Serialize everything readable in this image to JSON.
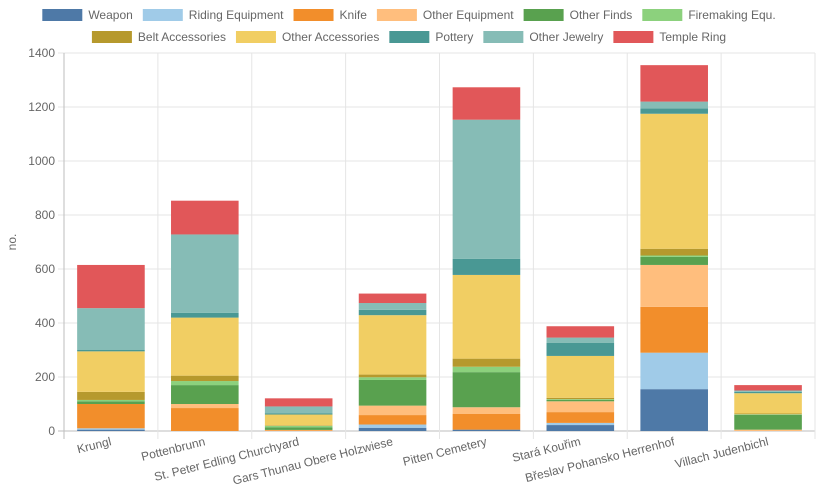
{
  "chart_data": {
    "type": "bar",
    "stacked": true,
    "ylabel": "no.",
    "ylim": [
      0,
      1400
    ],
    "yticks": [
      0,
      200,
      400,
      600,
      800,
      1000,
      1200,
      1400
    ],
    "grid": true,
    "legend_position": "top",
    "categories": [
      "Krungl",
      "Pottenbrunn",
      "St. Peter Edling Churchyard",
      "Gars Thunau Obere Holzwiese",
      "Pitten Cemetery",
      "Stará Kouřim",
      "Břeslav Pohansko Herrenhof",
      "Villach Judenbichl"
    ],
    "series": [
      {
        "name": "Weapon",
        "color": "#4e79a7",
        "values": [
          5,
          0,
          0,
          12,
          5,
          22,
          155,
          0
        ]
      },
      {
        "name": "Riding Equipment",
        "color": "#a0cbe8",
        "values": [
          5,
          0,
          0,
          12,
          0,
          8,
          135,
          0
        ]
      },
      {
        "name": "Knife",
        "color": "#f28e2b",
        "values": [
          90,
          85,
          2,
          35,
          58,
          40,
          170,
          0
        ]
      },
      {
        "name": "Other Equipment",
        "color": "#ffbe7d",
        "values": [
          0,
          15,
          2,
          35,
          25,
          40,
          155,
          5
        ]
      },
      {
        "name": "Other Finds",
        "color": "#59a14f",
        "values": [
          10,
          70,
          10,
          95,
          130,
          5,
          30,
          55
        ]
      },
      {
        "name": "Firemaking Equ.",
        "color": "#8cd17d",
        "values": [
          5,
          15,
          5,
          10,
          20,
          3,
          5,
          2
        ]
      },
      {
        "name": "Belt Accessories",
        "color": "#b6992d",
        "values": [
          30,
          20,
          2,
          10,
          30,
          5,
          25,
          3
        ]
      },
      {
        "name": "Other Accessories",
        "color": "#f1ce63",
        "values": [
          150,
          215,
          40,
          220,
          310,
          155,
          500,
          75
        ]
      },
      {
        "name": "Pottery",
        "color": "#499894",
        "values": [
          5,
          18,
          5,
          20,
          60,
          48,
          20,
          5
        ]
      },
      {
        "name": "Other Jewelry",
        "color": "#86bcb6",
        "values": [
          155,
          290,
          25,
          25,
          515,
          20,
          25,
          5
        ]
      },
      {
        "name": "Temple Ring",
        "color": "#e15759",
        "values": [
          160,
          125,
          30,
          35,
          120,
          42,
          135,
          20
        ]
      }
    ]
  }
}
